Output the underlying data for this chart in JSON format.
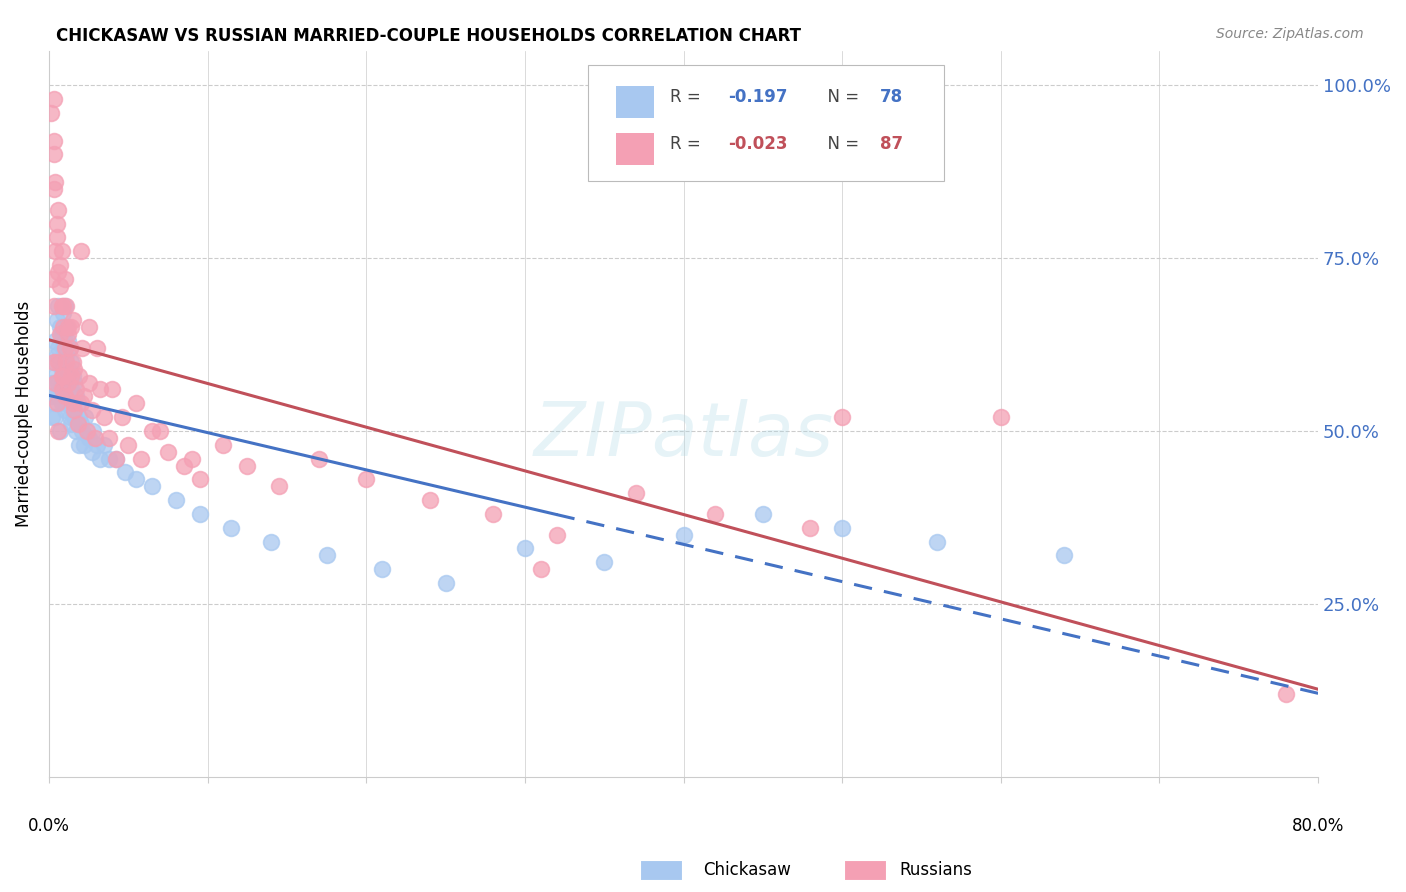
{
  "title": "CHICKASAW VS RUSSIAN MARRIED-COUPLE HOUSEHOLDS CORRELATION CHART",
  "source": "Source: ZipAtlas.com",
  "ylabel": "Married-couple Households",
  "color_chickasaw": "#A8C8F0",
  "color_russian": "#F4A0B4",
  "color_trendline_chickasaw": "#4472C4",
  "color_trendline_russian": "#C0505A",
  "watermark": "ZIPatlas",
  "chickasaw_x": [
    0.001,
    0.002,
    0.002,
    0.003,
    0.003,
    0.004,
    0.004,
    0.004,
    0.005,
    0.005,
    0.005,
    0.006,
    0.006,
    0.006,
    0.007,
    0.007,
    0.007,
    0.007,
    0.008,
    0.008,
    0.008,
    0.009,
    0.009,
    0.009,
    0.01,
    0.01,
    0.01,
    0.01,
    0.011,
    0.011,
    0.011,
    0.012,
    0.012,
    0.012,
    0.013,
    0.013,
    0.013,
    0.014,
    0.014,
    0.014,
    0.015,
    0.015,
    0.016,
    0.016,
    0.017,
    0.017,
    0.018,
    0.019,
    0.019,
    0.02,
    0.021,
    0.022,
    0.023,
    0.025,
    0.027,
    0.028,
    0.03,
    0.032,
    0.035,
    0.038,
    0.042,
    0.048,
    0.055,
    0.065,
    0.08,
    0.095,
    0.115,
    0.14,
    0.175,
    0.21,
    0.25,
    0.3,
    0.35,
    0.4,
    0.45,
    0.5,
    0.56,
    0.64
  ],
  "chickasaw_y": [
    0.55,
    0.57,
    0.52,
    0.6,
    0.54,
    0.63,
    0.58,
    0.52,
    0.66,
    0.61,
    0.55,
    0.68,
    0.62,
    0.57,
    0.65,
    0.6,
    0.56,
    0.5,
    0.64,
    0.59,
    0.54,
    0.67,
    0.62,
    0.57,
    0.68,
    0.63,
    0.58,
    0.53,
    0.65,
    0.61,
    0.56,
    0.63,
    0.59,
    0.54,
    0.62,
    0.57,
    0.52,
    0.6,
    0.56,
    0.51,
    0.58,
    0.53,
    0.57,
    0.52,
    0.55,
    0.5,
    0.54,
    0.52,
    0.48,
    0.51,
    0.5,
    0.48,
    0.52,
    0.49,
    0.47,
    0.5,
    0.48,
    0.46,
    0.48,
    0.46,
    0.46,
    0.44,
    0.43,
    0.42,
    0.4,
    0.38,
    0.36,
    0.34,
    0.32,
    0.3,
    0.28,
    0.33,
    0.31,
    0.35,
    0.38,
    0.36,
    0.34,
    0.32
  ],
  "russian_x": [
    0.001,
    0.002,
    0.003,
    0.003,
    0.004,
    0.004,
    0.005,
    0.005,
    0.006,
    0.006,
    0.007,
    0.007,
    0.008,
    0.008,
    0.009,
    0.009,
    0.01,
    0.01,
    0.011,
    0.011,
    0.012,
    0.012,
    0.013,
    0.014,
    0.014,
    0.015,
    0.016,
    0.016,
    0.017,
    0.018,
    0.019,
    0.02,
    0.021,
    0.022,
    0.024,
    0.025,
    0.027,
    0.029,
    0.032,
    0.035,
    0.038,
    0.042,
    0.046,
    0.05,
    0.058,
    0.065,
    0.075,
    0.085,
    0.095,
    0.11,
    0.125,
    0.145,
    0.17,
    0.2,
    0.24,
    0.28,
    0.32,
    0.37,
    0.42,
    0.48,
    0.003,
    0.005,
    0.007,
    0.009,
    0.012,
    0.015,
    0.02,
    0.025,
    0.03,
    0.04,
    0.055,
    0.07,
    0.09,
    0.003,
    0.006,
    0.008,
    0.01,
    0.015,
    0.008,
    0.006,
    0.004,
    0.003,
    0.003,
    0.31,
    0.5,
    0.6,
    0.78
  ],
  "russian_y": [
    0.96,
    0.72,
    0.68,
    0.6,
    0.57,
    0.76,
    0.54,
    0.8,
    0.73,
    0.6,
    0.71,
    0.64,
    0.68,
    0.56,
    0.65,
    0.58,
    0.62,
    0.55,
    0.68,
    0.6,
    0.57,
    0.64,
    0.62,
    0.58,
    0.65,
    0.54,
    0.59,
    0.53,
    0.56,
    0.51,
    0.58,
    0.54,
    0.62,
    0.55,
    0.5,
    0.57,
    0.53,
    0.49,
    0.56,
    0.52,
    0.49,
    0.46,
    0.52,
    0.48,
    0.46,
    0.5,
    0.47,
    0.45,
    0.43,
    0.48,
    0.45,
    0.42,
    0.46,
    0.43,
    0.4,
    0.38,
    0.35,
    0.41,
    0.38,
    0.36,
    0.85,
    0.78,
    0.74,
    0.68,
    0.65,
    0.6,
    0.76,
    0.65,
    0.62,
    0.56,
    0.54,
    0.5,
    0.46,
    0.9,
    0.82,
    0.76,
    0.72,
    0.66,
    0.58,
    0.5,
    0.86,
    0.92,
    0.98,
    0.3,
    0.52,
    0.52,
    0.12
  ],
  "ytick_vals": [
    0.0,
    0.25,
    0.5,
    0.75,
    1.0
  ],
  "ytick_labels_right": [
    "",
    "25.0%",
    "50.0%",
    "75.0%",
    "100.0%"
  ],
  "xlim": [
    0.0,
    0.8
  ],
  "ylim": [
    0.0,
    1.05
  ]
}
